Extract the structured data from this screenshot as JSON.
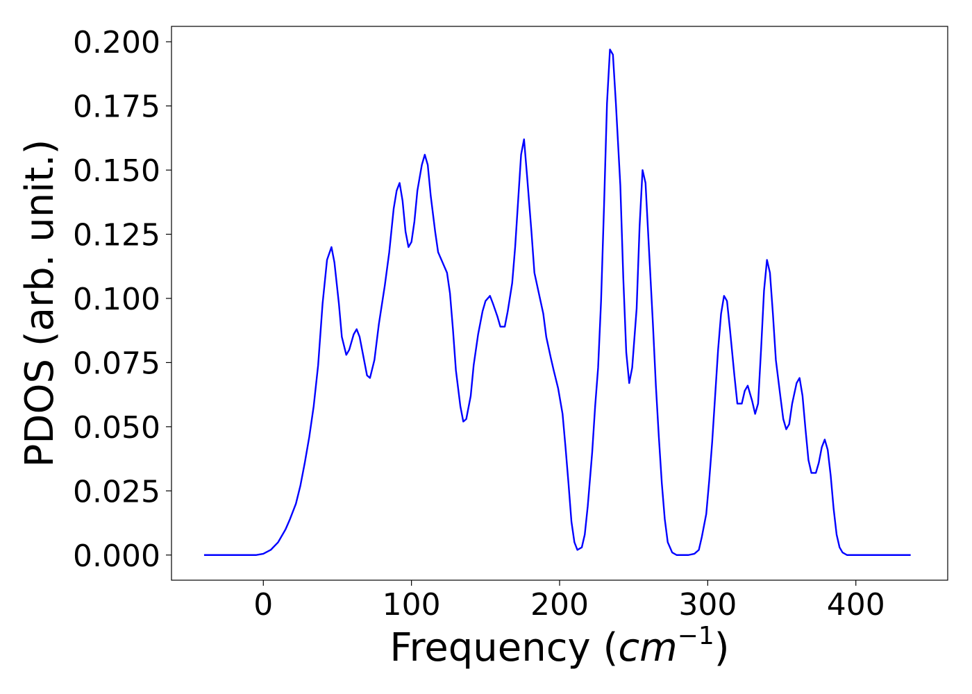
{
  "chart_data": {
    "type": "line",
    "xlabel": {
      "prefix": "Frequency (",
      "math": "cm",
      "superscript": "−1",
      "suffix": ")"
    },
    "ylabel": "PDOS (arb. unit.)",
    "xlim": [
      -62,
      462
    ],
    "ylim": [
      -0.0098,
      0.206
    ],
    "xticks": [
      0,
      100,
      200,
      300,
      400
    ],
    "xtick_labels": [
      "0",
      "100",
      "200",
      "300",
      "400"
    ],
    "yticks": [
      0,
      0.025,
      0.05,
      0.075,
      0.1,
      0.125,
      0.15,
      0.175,
      0.2
    ],
    "ytick_labels": [
      "0.000",
      "0.025",
      "0.050",
      "0.075",
      "0.100",
      "0.125",
      "0.150",
      "0.175",
      "0.200"
    ],
    "grid": false,
    "series": [
      {
        "color": "#0000ff",
        "points": [
          [
            -40,
            0.0
          ],
          [
            -20,
            0.0
          ],
          [
            -5,
            0.0
          ],
          [
            0,
            0.0005
          ],
          [
            5,
            0.002
          ],
          [
            10,
            0.005
          ],
          [
            15,
            0.01
          ],
          [
            18,
            0.014
          ],
          [
            22,
            0.02
          ],
          [
            25,
            0.027
          ],
          [
            28,
            0.036
          ],
          [
            31,
            0.046
          ],
          [
            34,
            0.058
          ],
          [
            37,
            0.074
          ],
          [
            40,
            0.098
          ],
          [
            43,
            0.115
          ],
          [
            46,
            0.12
          ],
          [
            48,
            0.114
          ],
          [
            51,
            0.098
          ],
          [
            53,
            0.085
          ],
          [
            56,
            0.078
          ],
          [
            58,
            0.08
          ],
          [
            61,
            0.086
          ],
          [
            63,
            0.088
          ],
          [
            65,
            0.085
          ],
          [
            68,
            0.076
          ],
          [
            70,
            0.07
          ],
          [
            72,
            0.069
          ],
          [
            75,
            0.076
          ],
          [
            78,
            0.09
          ],
          [
            82,
            0.105
          ],
          [
            85,
            0.118
          ],
          [
            88,
            0.135
          ],
          [
            90,
            0.142
          ],
          [
            92,
            0.145
          ],
          [
            94,
            0.138
          ],
          [
            96,
            0.126
          ],
          [
            98,
            0.12
          ],
          [
            100,
            0.122
          ],
          [
            102,
            0.13
          ],
          [
            104,
            0.142
          ],
          [
            107,
            0.152
          ],
          [
            109,
            0.156
          ],
          [
            111,
            0.152
          ],
          [
            113,
            0.14
          ],
          [
            116,
            0.126
          ],
          [
            118,
            0.118
          ],
          [
            121,
            0.114
          ],
          [
            124,
            0.11
          ],
          [
            126,
            0.102
          ],
          [
            128,
            0.088
          ],
          [
            130,
            0.072
          ],
          [
            133,
            0.058
          ],
          [
            135,
            0.052
          ],
          [
            137,
            0.053
          ],
          [
            140,
            0.062
          ],
          [
            142,
            0.074
          ],
          [
            145,
            0.086
          ],
          [
            148,
            0.095
          ],
          [
            150,
            0.099
          ],
          [
            153,
            0.101
          ],
          [
            155,
            0.098
          ],
          [
            158,
            0.093
          ],
          [
            160,
            0.089
          ],
          [
            163,
            0.089
          ],
          [
            165,
            0.095
          ],
          [
            168,
            0.106
          ],
          [
            170,
            0.12
          ],
          [
            172,
            0.138
          ],
          [
            174,
            0.156
          ],
          [
            176,
            0.162
          ],
          [
            178,
            0.148
          ],
          [
            181,
            0.126
          ],
          [
            183,
            0.11
          ],
          [
            186,
            0.102
          ],
          [
            189,
            0.094
          ],
          [
            191,
            0.085
          ],
          [
            194,
            0.077
          ],
          [
            196,
            0.072
          ],
          [
            199,
            0.065
          ],
          [
            202,
            0.055
          ],
          [
            204,
            0.042
          ],
          [
            206,
            0.028
          ],
          [
            208,
            0.013
          ],
          [
            210,
            0.005
          ],
          [
            212,
            0.002
          ],
          [
            215,
            0.003
          ],
          [
            217,
            0.008
          ],
          [
            219,
            0.019
          ],
          [
            222,
            0.04
          ],
          [
            224,
            0.058
          ],
          [
            226,
            0.073
          ],
          [
            228,
            0.099
          ],
          [
            230,
            0.136
          ],
          [
            232,
            0.176
          ],
          [
            234,
            0.197
          ],
          [
            236,
            0.195
          ],
          [
            238,
            0.176
          ],
          [
            241,
            0.144
          ],
          [
            243,
            0.108
          ],
          [
            245,
            0.079
          ],
          [
            247,
            0.067
          ],
          [
            249,
            0.073
          ],
          [
            252,
            0.096
          ],
          [
            254,
            0.128
          ],
          [
            256,
            0.15
          ],
          [
            258,
            0.145
          ],
          [
            260,
            0.123
          ],
          [
            263,
            0.09
          ],
          [
            265,
            0.066
          ],
          [
            267,
            0.046
          ],
          [
            269,
            0.028
          ],
          [
            271,
            0.014
          ],
          [
            273,
            0.005
          ],
          [
            276,
            0.001
          ],
          [
            279,
            0.0
          ],
          [
            283,
            0.0
          ],
          [
            287,
            0.0
          ],
          [
            291,
            0.0005
          ],
          [
            294,
            0.002
          ],
          [
            296,
            0.007
          ],
          [
            299,
            0.016
          ],
          [
            301,
            0.029
          ],
          [
            303,
            0.044
          ],
          [
            305,
            0.062
          ],
          [
            307,
            0.08
          ],
          [
            309,
            0.094
          ],
          [
            311,
            0.101
          ],
          [
            313,
            0.099
          ],
          [
            315,
            0.088
          ],
          [
            318,
            0.07
          ],
          [
            320,
            0.059
          ],
          [
            323,
            0.059
          ],
          [
            325,
            0.064
          ],
          [
            327,
            0.066
          ],
          [
            330,
            0.06
          ],
          [
            332,
            0.055
          ],
          [
            334,
            0.059
          ],
          [
            336,
            0.08
          ],
          [
            338,
            0.103
          ],
          [
            340,
            0.115
          ],
          [
            342,
            0.11
          ],
          [
            344,
            0.094
          ],
          [
            346,
            0.076
          ],
          [
            349,
            0.062
          ],
          [
            351,
            0.053
          ],
          [
            353,
            0.049
          ],
          [
            355,
            0.051
          ],
          [
            357,
            0.059
          ],
          [
            360,
            0.067
          ],
          [
            362,
            0.069
          ],
          [
            364,
            0.062
          ],
          [
            366,
            0.049
          ],
          [
            368,
            0.037
          ],
          [
            370,
            0.032
          ],
          [
            373,
            0.032
          ],
          [
            375,
            0.036
          ],
          [
            377,
            0.042
          ],
          [
            379,
            0.045
          ],
          [
            381,
            0.041
          ],
          [
            383,
            0.031
          ],
          [
            385,
            0.018
          ],
          [
            387,
            0.008
          ],
          [
            389,
            0.003
          ],
          [
            391,
            0.001
          ],
          [
            394,
            0.0
          ],
          [
            400,
            0.0
          ],
          [
            420,
            0.0
          ],
          [
            437,
            0.0
          ]
        ]
      }
    ]
  }
}
